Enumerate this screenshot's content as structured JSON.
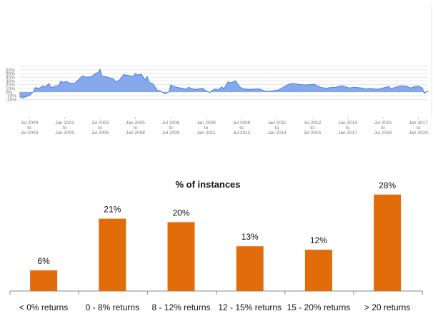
{
  "chart_data": [
    {
      "type": "area",
      "title": "",
      "xlabel": "",
      "ylabel": "",
      "ylim": [
        -20,
        70
      ],
      "y_ticks": [
        "60%",
        "50%",
        "40%",
        "30%",
        "20%",
        "10%",
        "0%",
        "-10%",
        "-20%"
      ],
      "y_tick_values": [
        60,
        50,
        40,
        30,
        20,
        10,
        0,
        -10,
        -20
      ],
      "x_ticks": [
        {
          "date": "2000-07",
          "lines": [
            "Jul 2000",
            "to",
            "Jul 2003"
          ]
        },
        {
          "date": "2002-01",
          "lines": [
            "Jan 2002",
            "to",
            "Jan 2005"
          ]
        },
        {
          "date": "2003-07",
          "lines": [
            "Jul 2003",
            "to",
            "Jul 2006"
          ]
        },
        {
          "date": "2005-01",
          "lines": [
            "Jan 2005",
            "to",
            "Jan 2008"
          ]
        },
        {
          "date": "2006-07",
          "lines": [
            "Jul 2006",
            "to",
            "Jul 2009"
          ]
        },
        {
          "date": "2008-01",
          "lines": [
            "Jan 2008",
            "to",
            "Jan 2011"
          ]
        },
        {
          "date": "2009-07",
          "lines": [
            "Jul 2009",
            "to",
            "Jul 2012"
          ]
        },
        {
          "date": "2011-01",
          "lines": [
            "Jan 2011",
            "to",
            "Jan 2014"
          ]
        },
        {
          "date": "2012-07",
          "lines": [
            "Jul 2012",
            "to",
            "Jul 2015"
          ]
        },
        {
          "date": "2014-01",
          "lines": [
            "Jan 2014",
            "to",
            "Jan 2017"
          ]
        },
        {
          "date": "2015-07",
          "lines": [
            "Jul 2015",
            "to",
            "Jul 2018"
          ]
        },
        {
          "date": "2017-01",
          "lines": [
            "Jan 2017",
            "to",
            "Jan 2020"
          ]
        }
      ],
      "grid": true,
      "colors": {
        "fill": "#86a8ec",
        "line": "#4d7fe0",
        "grid": "#e6e6e6"
      },
      "series": [
        {
          "x": [
            "2000-02",
            "2000-03",
            "2000-04",
            "2000-05",
            "2000-07",
            "2000-08",
            "2000-09",
            "2000-10",
            "2000-12",
            "2001-02",
            "2001-03",
            "2001-05",
            "2001-06",
            "2001-08",
            "2001-10",
            "2001-11",
            "2001-12",
            "2002-02",
            "2002-03",
            "2002-06",
            "2002-07",
            "2002-09",
            "2002-10",
            "2002-12",
            "2003-03",
            "2003-04",
            "2003-06",
            "2003-07",
            "2003-08",
            "2003-11",
            "2003-12",
            "2004-02",
            "2004-03",
            "2004-05",
            "2004-07",
            "2004-10",
            "2004-12",
            "2005-01",
            "2005-02",
            "2005-04",
            "2005-05",
            "2005-06",
            "2005-07",
            "2005-08",
            "2005-10",
            "2005-12",
            "2006-02",
            "2006-04",
            "2006-06",
            "2006-07",
            "2006-09",
            "2006-11",
            "2007-01",
            "2007-03",
            "2007-04",
            "2007-06",
            "2007-08",
            "2007-11",
            "2008-01",
            "2008-03",
            "2008-04",
            "2008-06",
            "2008-07",
            "2008-09",
            "2008-10",
            "2008-12",
            "2009-02",
            "2009-04",
            "2009-06",
            "2009-08",
            "2009-11",
            "2010-04",
            "2010-06",
            "2010-08",
            "2010-11",
            "2011-02",
            "2011-05",
            "2011-07",
            "2011-09",
            "2011-12",
            "2012-03",
            "2012-08",
            "2012-11",
            "2013-02",
            "2013-04",
            "2013-07",
            "2013-10",
            "2014-02",
            "2014-04",
            "2014-08",
            "2014-10",
            "2015-01",
            "2015-04",
            "2015-07",
            "2015-10",
            "2015-11",
            "2016-02",
            "2016-04",
            "2016-07",
            "2016-09",
            "2016-11",
            "2017-01",
            "2017-03",
            "2017-04",
            "2017-05",
            "2017-06"
          ],
          "y": [
            -12,
            -15,
            -16,
            -13,
            -10,
            -5,
            0,
            12,
            10,
            17,
            13,
            23,
            12,
            15,
            18,
            29,
            26,
            28,
            25,
            23,
            28,
            38,
            43,
            40,
            42,
            48,
            53,
            61,
            43,
            40,
            38,
            35,
            27,
            33,
            47,
            44,
            42,
            50,
            46,
            48,
            40,
            32,
            42,
            26,
            22,
            5,
            2,
            -5,
            0,
            19,
            14,
            12,
            10,
            7,
            13,
            8,
            7,
            10,
            3,
            -2,
            5,
            8,
            5,
            14,
            8,
            27,
            25,
            30,
            14,
            8,
            7,
            8,
            4,
            2,
            3,
            6,
            15,
            21,
            23,
            21,
            19,
            21,
            13,
            10,
            12,
            13,
            17,
            11,
            13,
            11,
            8,
            9,
            7,
            11,
            15,
            9,
            14,
            17,
            16,
            11,
            15,
            16,
            11,
            -4,
            1,
            2
          ]
        }
      ]
    },
    {
      "type": "bar",
      "title": "% of instances",
      "xlabel": "",
      "ylabel": "",
      "categories": [
        "< 0% returns",
        "0 - 8% returns",
        "8 - 12% returns",
        "12 - 15% returns",
        "15 - 20% returns",
        "> 20 returns"
      ],
      "values": [
        6,
        21,
        20,
        13,
        12,
        28
      ],
      "data_labels": [
        "6%",
        "21%",
        "20%",
        "13%",
        "12%",
        "28%"
      ],
      "grid": false,
      "colors": {
        "bar": "#e36c0a"
      }
    }
  ]
}
